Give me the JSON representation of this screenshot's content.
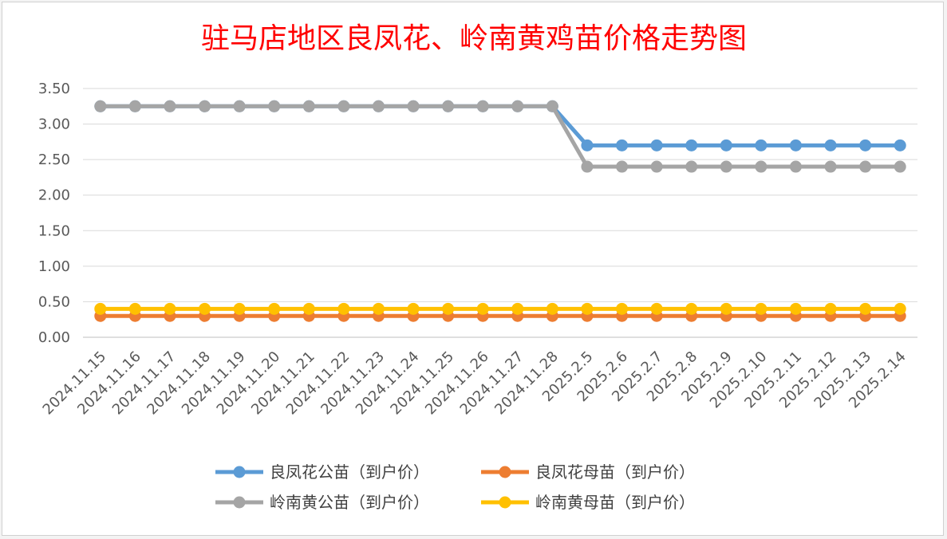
{
  "chart_data": {
    "type": "line",
    "title": "驻马店地区良凤花、岭南黄鸡苗价格走势图",
    "xlabel": "",
    "ylabel": "",
    "ylim": [
      0,
      3.5
    ],
    "y_ticks": [
      "0.00",
      "0.50",
      "1.00",
      "1.50",
      "2.00",
      "2.50",
      "3.00",
      "3.50"
    ],
    "grid": true,
    "legend_position": "bottom",
    "categories": [
      "2024.11.15",
      "2024.11.16",
      "2024.11.17",
      "2024.11.18",
      "2024.11.19",
      "2024.11.20",
      "2024.11.21",
      "2024.11.22",
      "2024.11.23",
      "2024.11.24",
      "2024.11.25",
      "2024.11.26",
      "2024.11.27",
      "2024.11.28",
      "2025.2.5",
      "2025.2.6",
      "2025.2.7",
      "2025.2.8",
      "2025.2.9",
      "2025.2.10",
      "2025.2.11",
      "2025.2.12",
      "2025.2.13",
      "2025.2.14"
    ],
    "series": [
      {
        "name": "良凤花公苗（到户价）",
        "color": "#5b9bd5",
        "values": [
          3.25,
          3.25,
          3.25,
          3.25,
          3.25,
          3.25,
          3.25,
          3.25,
          3.25,
          3.25,
          3.25,
          3.25,
          3.25,
          3.25,
          2.7,
          2.7,
          2.7,
          2.7,
          2.7,
          2.7,
          2.7,
          2.7,
          2.7,
          2.7
        ]
      },
      {
        "name": "良凤花母苗（到户价）",
        "color": "#ed7d31",
        "values": [
          0.3,
          0.3,
          0.3,
          0.3,
          0.3,
          0.3,
          0.3,
          0.3,
          0.3,
          0.3,
          0.3,
          0.3,
          0.3,
          0.3,
          0.3,
          0.3,
          0.3,
          0.3,
          0.3,
          0.3,
          0.3,
          0.3,
          0.3,
          0.3
        ]
      },
      {
        "name": "岭南黄公苗（到户价）",
        "color": "#a5a5a5",
        "values": [
          3.25,
          3.25,
          3.25,
          3.25,
          3.25,
          3.25,
          3.25,
          3.25,
          3.25,
          3.25,
          3.25,
          3.25,
          3.25,
          3.25,
          2.4,
          2.4,
          2.4,
          2.4,
          2.4,
          2.4,
          2.4,
          2.4,
          2.4,
          2.4
        ]
      },
      {
        "name": "岭南黄母苗（到户价）",
        "color": "#ffc000",
        "values": [
          0.4,
          0.4,
          0.4,
          0.4,
          0.4,
          0.4,
          0.4,
          0.4,
          0.4,
          0.4,
          0.4,
          0.4,
          0.4,
          0.4,
          0.4,
          0.4,
          0.4,
          0.4,
          0.4,
          0.4,
          0.4,
          0.4,
          0.4,
          0.4
        ]
      }
    ],
    "draw_order": [
      1,
      3,
      0,
      2
    ]
  }
}
